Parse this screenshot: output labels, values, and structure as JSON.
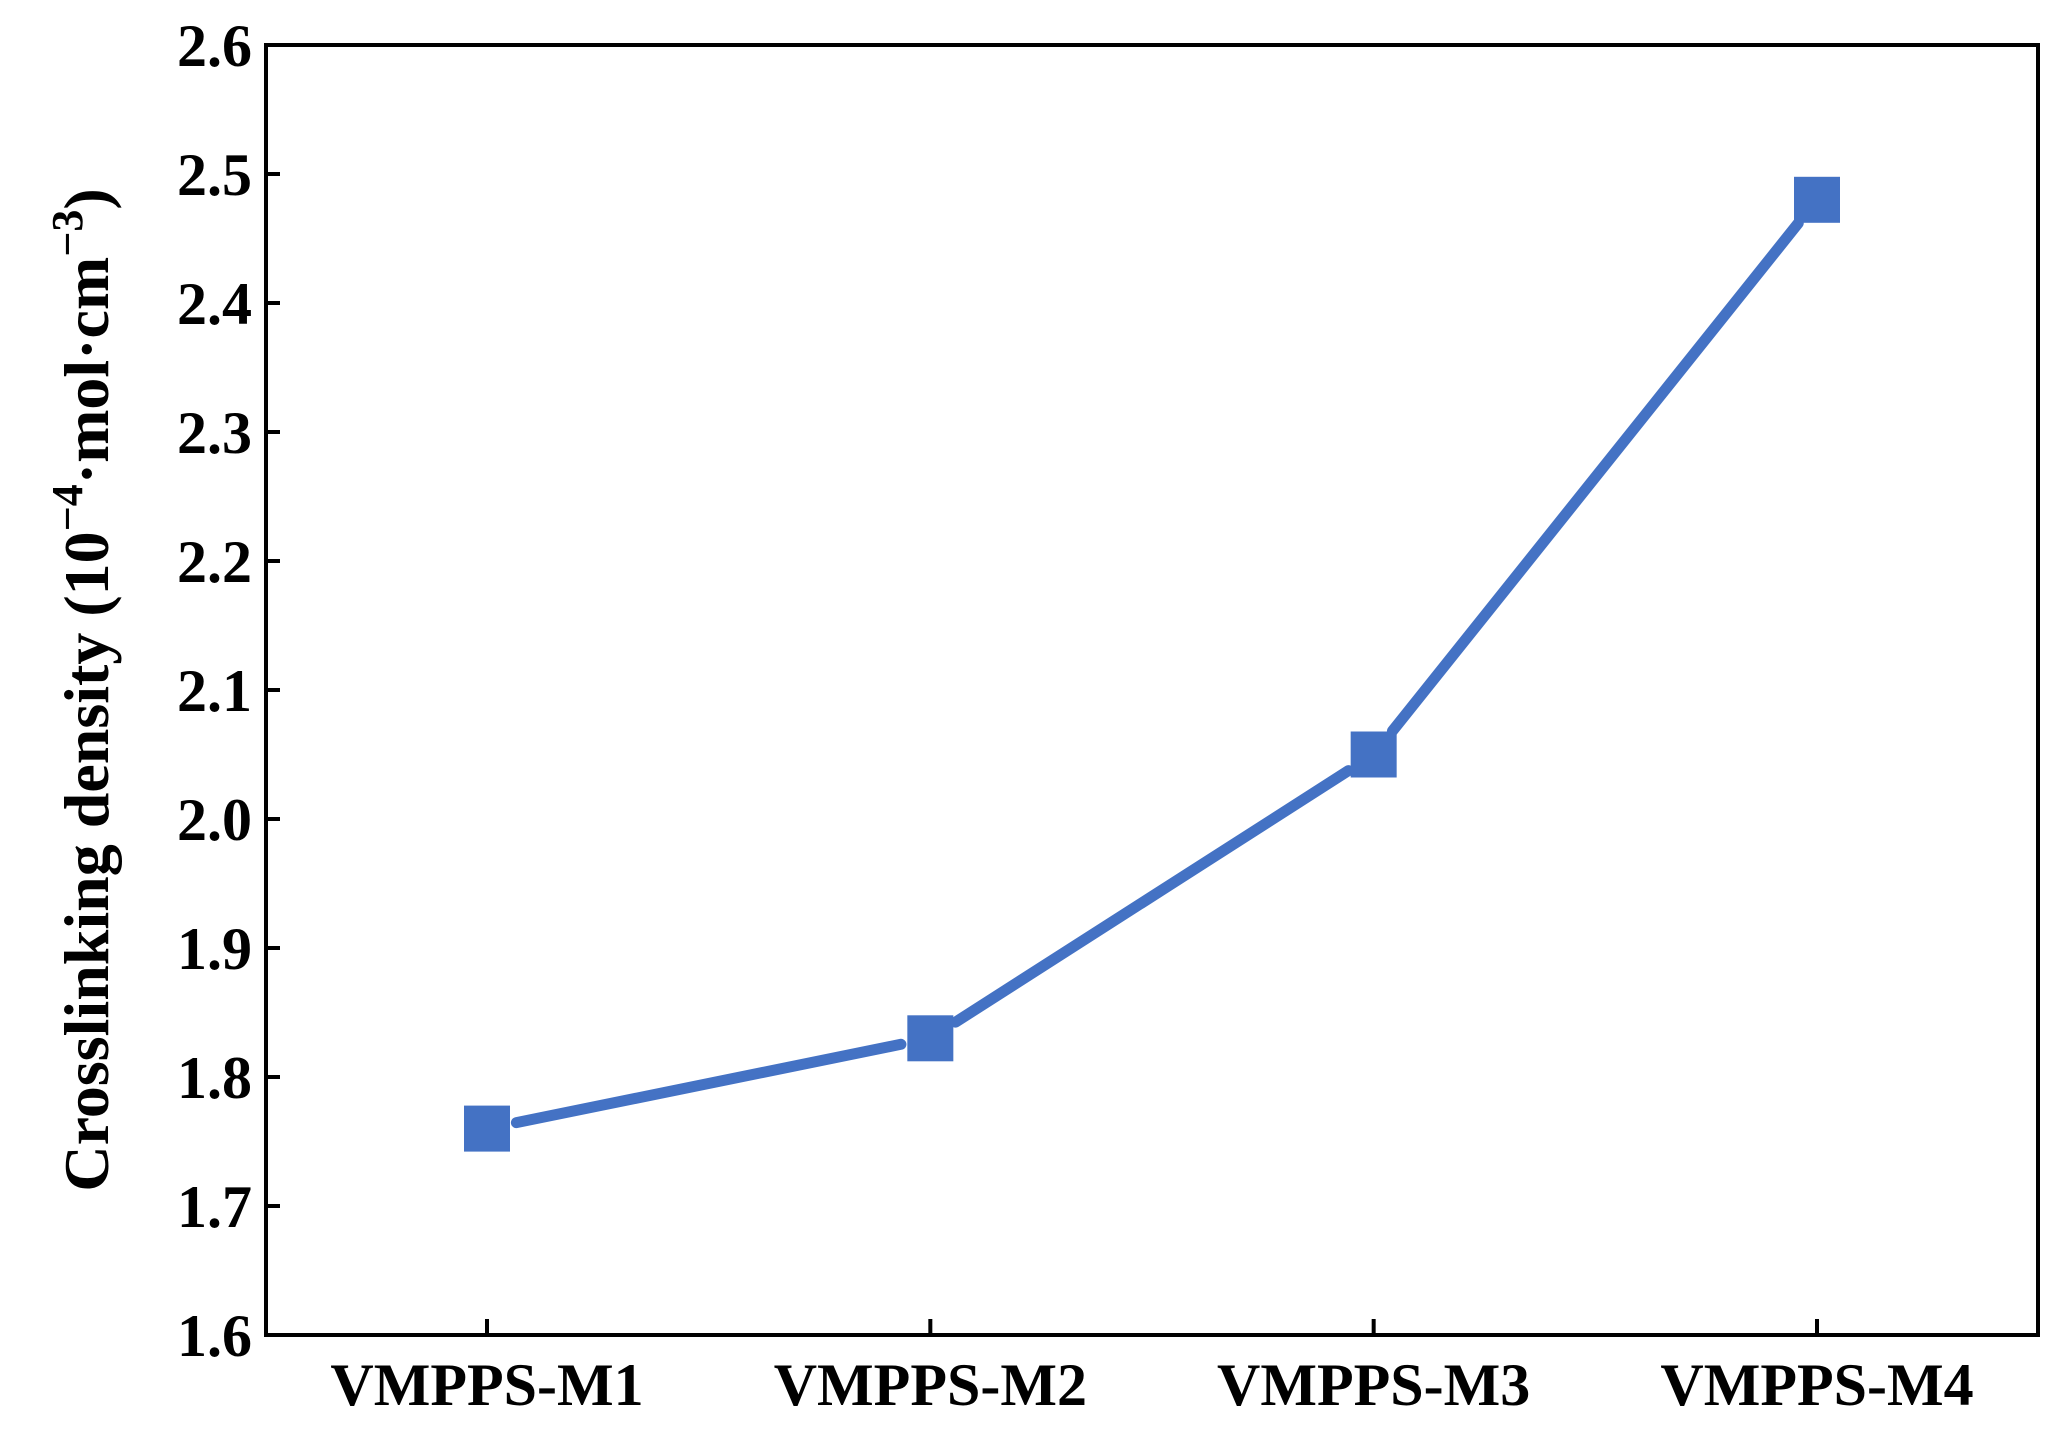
{
  "chart_data": {
    "type": "line",
    "title": "",
    "xlabel": "",
    "ylabel": "Crosslinking density (10",
    "ylabel_sup1": "−4",
    "ylabel_mid": "·mol·cm",
    "ylabel_sup2": "−3",
    "ylabel_end": ")",
    "categories": [
      "VMPPS-M1",
      "VMPPS-M2",
      "VMPPS-M3",
      "VMPPS-M4"
    ],
    "series": [
      {
        "values": [
          1.76,
          1.83,
          2.05,
          2.48
        ],
        "color": "#4472C4",
        "marker": "square"
      }
    ],
    "ylim": [
      1.6,
      2.6
    ],
    "yticks": [
      "1.6",
      "1.7",
      "1.8",
      "1.9",
      "2.0",
      "2.1",
      "2.2",
      "2.3",
      "2.4",
      "2.5",
      "2.6"
    ],
    "grid": false,
    "legend": "none"
  }
}
